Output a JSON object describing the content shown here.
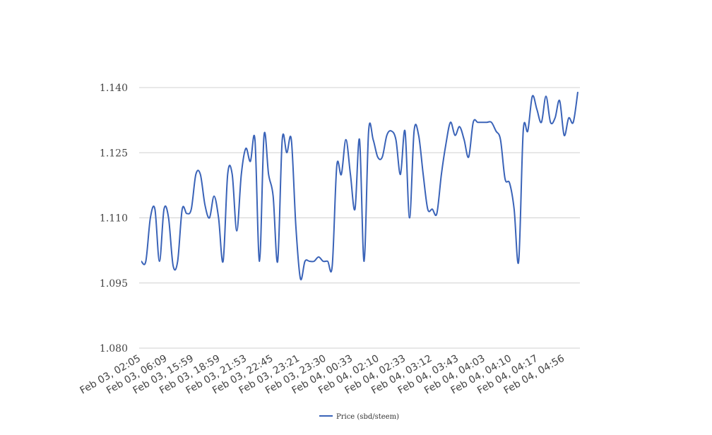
{
  "chart_data": {
    "type": "line",
    "ylim": [
      1.08,
      1.14
    ],
    "y_ticks": [
      "1.080",
      "1.095",
      "1.110",
      "1.125",
      "1.140"
    ],
    "x_tick_labels": [
      "Feb 03, 02:05",
      "Feb 03, 06:09",
      "Feb 03, 15:59",
      "Feb 03, 18:59",
      "Feb 03, 21:53",
      "Feb 03, 22:45",
      "Feb 03, 23:21",
      "Feb 03, 23:30",
      "Feb 04, 00:33",
      "Feb 04, 02:10",
      "Feb 04, 02:33",
      "Feb 04, 03:12",
      "Feb 04, 03:43",
      "Feb 04, 04:03",
      "Feb 04, 04:10",
      "Feb 04, 04:17",
      "Feb 04, 04:56"
    ],
    "grid": true,
    "legend_position": "bottom",
    "series": [
      {
        "name": "Price (sbd/steem)",
        "color": "#3a63b8",
        "values": [
          1.1,
          1.1,
          1.11,
          1.112,
          1.1,
          1.112,
          1.11,
          1.099,
          1.1,
          1.112,
          1.111,
          1.112,
          1.12,
          1.12,
          1.113,
          1.11,
          1.115,
          1.11,
          1.1,
          1.12,
          1.12,
          1.107,
          1.12,
          1.126,
          1.123,
          1.128,
          1.1,
          1.129,
          1.12,
          1.115,
          1.1,
          1.128,
          1.125,
          1.128,
          1.108,
          1.096,
          1.1,
          1.1,
          1.1,
          1.101,
          1.1,
          1.1,
          1.099,
          1.122,
          1.12,
          1.128,
          1.12,
          1.112,
          1.128,
          1.1,
          1.13,
          1.128,
          1.124,
          1.124,
          1.129,
          1.13,
          1.128,
          1.12,
          1.13,
          1.11,
          1.13,
          1.129,
          1.12,
          1.112,
          1.112,
          1.111,
          1.12,
          1.127,
          1.132,
          1.129,
          1.131,
          1.128,
          1.124,
          1.132,
          1.132,
          1.132,
          1.132,
          1.132,
          1.13,
          1.128,
          1.119,
          1.118,
          1.112,
          1.1,
          1.13,
          1.13,
          1.138,
          1.135,
          1.132,
          1.138,
          1.132,
          1.133,
          1.137,
          1.129,
          1.133,
          1.132,
          1.139
        ]
      }
    ]
  }
}
